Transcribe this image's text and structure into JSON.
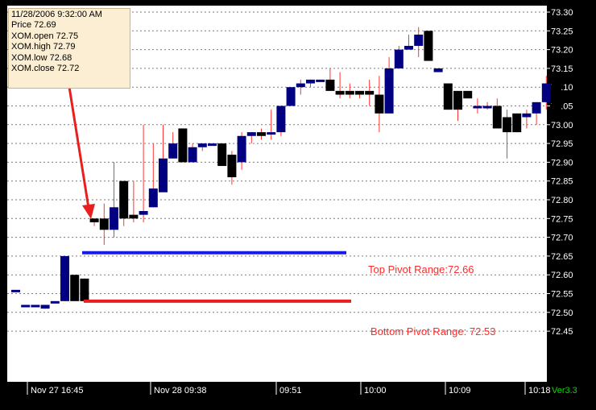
{
  "tooltip": {
    "datetime": "11/28/2006 9:32:00 AM",
    "price": "Price  72.69",
    "open": "XOM.open  72.75",
    "high": "XOM.high  72.79",
    "low": "XOM.low  72.68",
    "close": "XOM.close  72.72"
  },
  "annotations": {
    "top_pivot": "Top Pivot Range:72.66",
    "bottom_pivot": "Bottom Pivot Range: 72.53",
    "version": "Ver3.3"
  },
  "colors": {
    "background": "#000000",
    "plot_background": "#ffffff",
    "grid": "#7a7a7a",
    "candle_up": "#000080",
    "candle_down": "#000000",
    "wick": "#ff3333",
    "top_pivot_line": "#1a1ae6",
    "bottom_pivot_line": "#e62020",
    "arrow": "#e62020",
    "annotation_text": "#ff2a2a",
    "version_text": "#00dd00"
  },
  "chart_data": {
    "type": "candlestick",
    "title": "",
    "ylim": [
      72.41,
      73.315
    ],
    "grid": true,
    "yticks": [
      "73.30",
      "73.25",
      "73.20",
      "73.15",
      "73.10",
      "73.05",
      "73.00",
      "72.95",
      "72.90",
      "72.85",
      "72.80",
      "72.75",
      "72.70",
      "72.65",
      "72.60",
      "72.55",
      "72.50",
      "72.45"
    ],
    "xtick_labels": [
      "Nov 27 16:45",
      "Nov 28 09:38",
      "09:51",
      "10:00",
      "10:09",
      "10:18"
    ],
    "candles": [
      {
        "o": 72.56,
        "h": 72.56,
        "l": 72.56,
        "c": 72.56
      },
      {
        "o": 72.52,
        "h": 72.52,
        "l": 72.52,
        "c": 72.52
      },
      {
        "o": 72.52,
        "h": 72.52,
        "l": 72.52,
        "c": 72.52
      },
      {
        "o": 72.51,
        "h": 72.52,
        "l": 72.51,
        "c": 72.52
      },
      {
        "o": 72.53,
        "h": 72.53,
        "l": 72.53,
        "c": 72.53
      },
      {
        "o": 72.53,
        "h": 72.65,
        "l": 72.53,
        "c": 72.65
      },
      {
        "o": 72.6,
        "h": 72.6,
        "l": 72.53,
        "c": 72.53
      },
      {
        "o": 72.59,
        "h": 72.59,
        "l": 72.53,
        "c": 72.53
      },
      {
        "o": 72.75,
        "h": 72.75,
        "l": 72.73,
        "c": 72.74
      },
      {
        "o": 72.75,
        "h": 72.79,
        "l": 72.68,
        "c": 72.72
      },
      {
        "o": 72.72,
        "h": 72.9,
        "l": 72.7,
        "c": 72.78
      },
      {
        "o": 72.85,
        "h": 72.85,
        "l": 72.73,
        "c": 72.75
      },
      {
        "o": 72.76,
        "h": 72.85,
        "l": 72.74,
        "c": 72.75
      },
      {
        "o": 72.76,
        "h": 73.0,
        "l": 72.74,
        "c": 72.77
      },
      {
        "o": 72.78,
        "h": 72.95,
        "l": 72.78,
        "c": 72.83
      },
      {
        "o": 72.82,
        "h": 73.0,
        "l": 72.82,
        "c": 72.91
      },
      {
        "o": 72.91,
        "h": 72.98,
        "l": 72.91,
        "c": 72.95
      },
      {
        "o": 72.99,
        "h": 72.99,
        "l": 72.9,
        "c": 72.9
      },
      {
        "o": 72.9,
        "h": 72.95,
        "l": 72.9,
        "c": 72.94
      },
      {
        "o": 72.94,
        "h": 72.95,
        "l": 72.93,
        "c": 72.95
      },
      {
        "o": 72.95,
        "h": 72.95,
        "l": 72.95,
        "c": 72.95
      },
      {
        "o": 72.95,
        "h": 72.95,
        "l": 72.89,
        "c": 72.89
      },
      {
        "o": 72.92,
        "h": 72.93,
        "l": 72.84,
        "c": 72.86
      },
      {
        "o": 72.9,
        "h": 72.98,
        "l": 72.88,
        "c": 72.97
      },
      {
        "o": 72.97,
        "h": 72.98,
        "l": 72.95,
        "c": 72.98
      },
      {
        "o": 72.98,
        "h": 72.99,
        "l": 72.96,
        "c": 72.97
      },
      {
        "o": 72.98,
        "h": 73.04,
        "l": 72.96,
        "c": 72.98
      },
      {
        "o": 72.98,
        "h": 73.05,
        "l": 72.97,
        "c": 73.05
      },
      {
        "o": 73.05,
        "h": 73.1,
        "l": 73.05,
        "c": 73.1
      },
      {
        "o": 73.1,
        "h": 73.12,
        "l": 73.08,
        "c": 73.11
      },
      {
        "o": 73.11,
        "h": 73.12,
        "l": 73.1,
        "c": 73.12
      },
      {
        "o": 73.12,
        "h": 73.12,
        "l": 73.12,
        "c": 73.12
      },
      {
        "o": 73.12,
        "h": 73.15,
        "l": 73.09,
        "c": 73.09
      },
      {
        "o": 73.09,
        "h": 73.14,
        "l": 73.07,
        "c": 73.08
      },
      {
        "o": 73.09,
        "h": 73.11,
        "l": 73.07,
        "c": 73.08
      },
      {
        "o": 73.09,
        "h": 73.09,
        "l": 73.07,
        "c": 73.08
      },
      {
        "o": 73.09,
        "h": 73.12,
        "l": 73.05,
        "c": 73.08
      },
      {
        "o": 73.08,
        "h": 73.13,
        "l": 72.98,
        "c": 73.03
      },
      {
        "o": 73.03,
        "h": 73.18,
        "l": 73.03,
        "c": 73.15
      },
      {
        "o": 73.15,
        "h": 73.21,
        "l": 73.15,
        "c": 73.2
      },
      {
        "o": 73.2,
        "h": 73.24,
        "l": 73.2,
        "c": 73.21
      },
      {
        "o": 73.21,
        "h": 73.26,
        "l": 73.18,
        "c": 73.24
      },
      {
        "o": 73.25,
        "h": 73.25,
        "l": 73.17,
        "c": 73.17
      },
      {
        "o": 73.14,
        "h": 73.15,
        "l": 73.14,
        "c": 73.15
      },
      {
        "o": 73.11,
        "h": 73.11,
        "l": 73.04,
        "c": 73.04
      },
      {
        "o": 73.09,
        "h": 73.09,
        "l": 73.01,
        "c": 73.04
      },
      {
        "o": 73.09,
        "h": 73.09,
        "l": 73.07,
        "c": 73.07
      },
      {
        "o": 73.05,
        "h": 73.07,
        "l": 73.03,
        "c": 73.05
      },
      {
        "o": 73.05,
        "h": 73.06,
        "l": 73.04,
        "c": 73.05
      },
      {
        "o": 73.05,
        "h": 73.07,
        "l": 72.99,
        "c": 72.99
      },
      {
        "o": 73.02,
        "h": 73.04,
        "l": 72.91,
        "c": 72.98
      },
      {
        "o": 73.03,
        "h": 73.03,
        "l": 72.98,
        "c": 72.98
      },
      {
        "o": 73.02,
        "h": 73.04,
        "l": 72.99,
        "c": 73.03
      },
      {
        "o": 73.03,
        "h": 73.06,
        "l": 73.0,
        "c": 73.06
      },
      {
        "o": 73.06,
        "h": 73.13,
        "l": 73.04,
        "c": 73.11
      },
      {
        "o": 73.11,
        "h": 73.11,
        "l": 73.03,
        "c": 73.03
      }
    ],
    "levels": [
      {
        "name": "Top Pivot Range",
        "value": 72.66
      },
      {
        "name": "Bottom Pivot Range",
        "value": 72.53
      }
    ]
  }
}
